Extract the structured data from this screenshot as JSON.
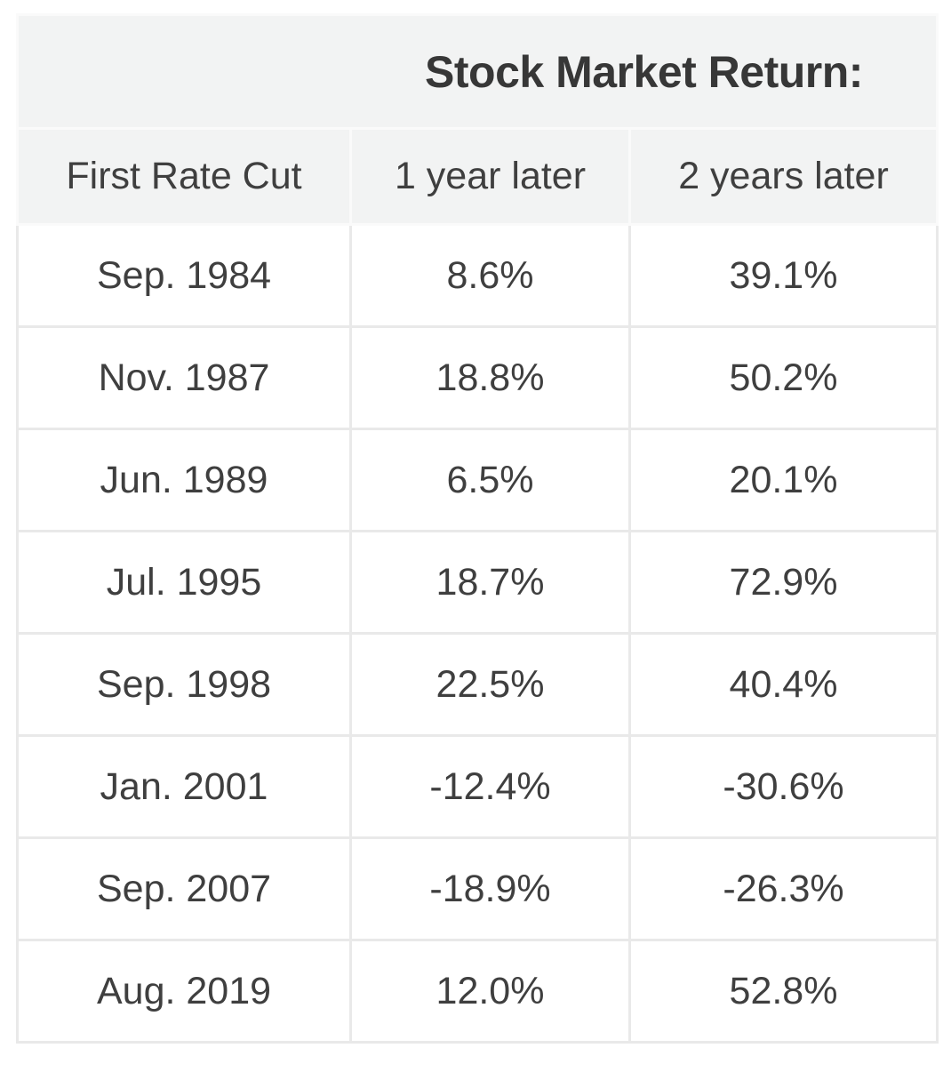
{
  "table": {
    "title": "Stock Market Return:",
    "headers": [
      "First Rate Cut",
      "1 year later",
      "2 years later"
    ],
    "rows": [
      [
        "Sep. 1984",
        "8.6%",
        "39.1%"
      ],
      [
        "Nov. 1987",
        "18.8%",
        "50.2%"
      ],
      [
        "Jun. 1989",
        "6.5%",
        "20.1%"
      ],
      [
        "Jul. 1995",
        "18.7%",
        "72.9%"
      ],
      [
        "Sep. 1998",
        "22.5%",
        "40.4%"
      ],
      [
        "Jan. 2001",
        "-12.4%",
        "-30.6%"
      ],
      [
        "Sep. 2007",
        "-18.9%",
        "-26.3%"
      ],
      [
        "Aug. 2019",
        "12.0%",
        "52.8%"
      ]
    ]
  },
  "colors": {
    "header_bg": "#f2f3f3",
    "header_border": "#fafafa",
    "body_border": "#e9e9e9",
    "text": "#3f3f3f",
    "title_text": "#373737",
    "page_bg": "#ffffff"
  },
  "chart_data": {
    "type": "table",
    "title": "Stock Market Return:",
    "columns": [
      "First Rate Cut",
      "1 year later",
      "2 years later"
    ],
    "rows": [
      [
        "Sep. 1984",
        "8.6%",
        "39.1%"
      ],
      [
        "Nov. 1987",
        "18.8%",
        "50.2%"
      ],
      [
        "Jun. 1989",
        "6.5%",
        "20.1%"
      ],
      [
        "Jul. 1995",
        "18.7%",
        "72.9%"
      ],
      [
        "Sep. 1998",
        "22.5%",
        "40.4%"
      ],
      [
        "Jan. 2001",
        "-12.4%",
        "-30.6%"
      ],
      [
        "Sep. 2007",
        "-18.9%",
        "-26.3%"
      ],
      [
        "Aug. 2019",
        "12.0%",
        "52.8%"
      ]
    ],
    "series": [
      {
        "name": "1 year later",
        "values": [
          8.6,
          18.8,
          6.5,
          18.7,
          22.5,
          -12.4,
          -18.9,
          12.0
        ]
      },
      {
        "name": "2 years later",
        "values": [
          39.1,
          50.2,
          20.1,
          72.9,
          40.4,
          -30.6,
          -26.3,
          52.8
        ]
      }
    ],
    "categories": [
      "Sep. 1984",
      "Nov. 1987",
      "Jun. 1989",
      "Jul. 1995",
      "Sep. 1998",
      "Jan. 2001",
      "Sep. 2007",
      "Aug. 2019"
    ],
    "value_unit": "%"
  }
}
